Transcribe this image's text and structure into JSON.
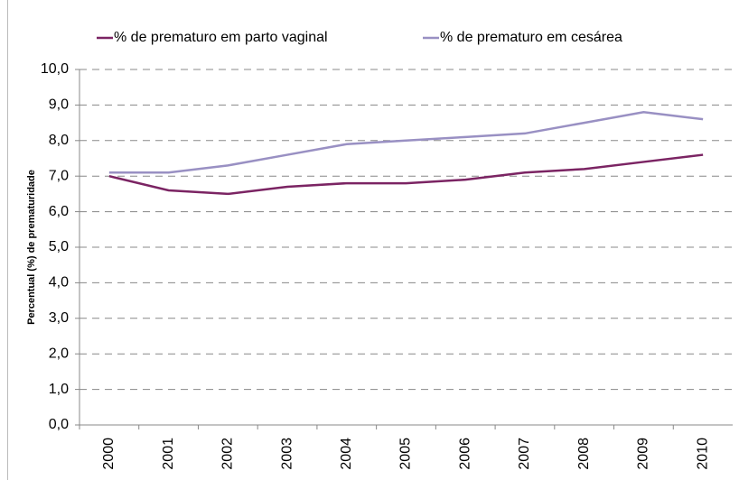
{
  "chart_data": {
    "type": "line",
    "y_label": "Percentual (%) de prematuridade",
    "categories": [
      "2000",
      "2001",
      "2002",
      "2003",
      "2004",
      "2005",
      "2006",
      "2007",
      "2008",
      "2009",
      "2010"
    ],
    "series": [
      {
        "name": "% de prematuro em parto vaginal",
        "color": "#7b2463",
        "values": [
          7.0,
          6.6,
          6.5,
          6.7,
          6.8,
          6.8,
          6.9,
          7.1,
          7.2,
          7.4,
          7.6
        ]
      },
      {
        "name": "% de prematuro em cesárea",
        "color": "#9990c3",
        "values": [
          7.1,
          7.1,
          7.3,
          7.6,
          7.9,
          8.0,
          8.1,
          8.2,
          8.5,
          8.8,
          8.6
        ]
      }
    ],
    "ylim": [
      0,
      10
    ],
    "yticks": [
      {
        "value": 0,
        "label": "0,0"
      },
      {
        "value": 1,
        "label": "1,0"
      },
      {
        "value": 2,
        "label": "2,0"
      },
      {
        "value": 3,
        "label": "3,0"
      },
      {
        "value": 4,
        "label": "4,0"
      },
      {
        "value": 5,
        "label": "5,0"
      },
      {
        "value": 6,
        "label": "6,0"
      },
      {
        "value": 7,
        "label": "7,0"
      },
      {
        "value": 8,
        "label": "8,0"
      },
      {
        "value": 9,
        "label": "9,0"
      },
      {
        "value": 10,
        "label": "10,0"
      }
    ],
    "grid": true
  }
}
